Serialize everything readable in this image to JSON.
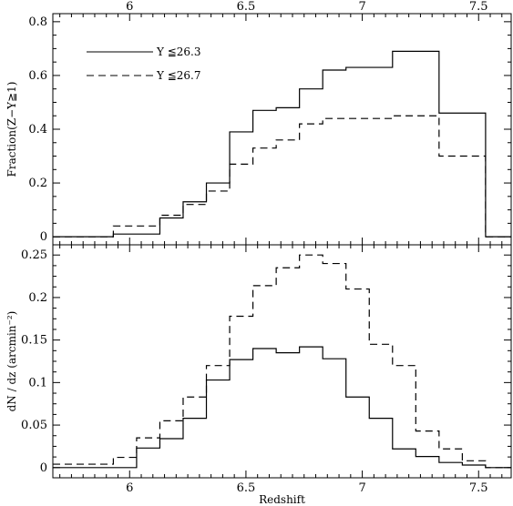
{
  "figure": {
    "xlabel": "Redshift",
    "xlim": [
      5.67,
      7.64
    ],
    "top_xticks": [
      "6",
      "6.5",
      "7",
      "7.5"
    ],
    "bottom_xticks": [
      "6",
      "6.5",
      "7",
      "7.5"
    ],
    "line_color": "#000000",
    "background": "#ffffff"
  },
  "chart_data": [
    {
      "type": "line",
      "subtype": "step-histogram",
      "ylabel": "Fraction(Z−Y≧1)",
      "ylim": [
        -0.03,
        0.83
      ],
      "yticks": [
        "0",
        "0.2",
        "0.4",
        "0.6",
        "0.8"
      ],
      "legend": {
        "placement": "top-left"
      },
      "x_edges": [
        5.67,
        5.93,
        6.13,
        6.23,
        6.33,
        6.43,
        6.53,
        6.63,
        6.73,
        6.83,
        6.93,
        7.03,
        7.13,
        7.23,
        7.33,
        7.53,
        7.64
      ],
      "series": [
        {
          "name": "Y ≦26.3",
          "dash": "solid",
          "values": [
            0.0,
            0.01,
            0.07,
            0.13,
            0.2,
            0.39,
            0.47,
            0.48,
            0.55,
            0.62,
            0.63,
            0.63,
            0.69,
            0.69,
            0.46,
            0.0
          ]
        },
        {
          "name": "Y ≦26.7",
          "dash": "dashed",
          "values": [
            0.0,
            0.04,
            0.08,
            0.12,
            0.17,
            0.27,
            0.33,
            0.36,
            0.42,
            0.44,
            0.44,
            0.44,
            0.45,
            0.45,
            0.3,
            0.0
          ]
        }
      ]
    },
    {
      "type": "line",
      "subtype": "step-histogram",
      "ylabel": "dN / dz (arcmin⁻²)",
      "ylim": [
        -0.012,
        0.262
      ],
      "yticks": [
        "0",
        "0.05",
        "0.1",
        "0.15",
        "0.2",
        "0.25"
      ],
      "x_edges": [
        5.67,
        5.93,
        6.03,
        6.13,
        6.23,
        6.33,
        6.43,
        6.53,
        6.63,
        6.73,
        6.83,
        6.93,
        7.03,
        7.13,
        7.23,
        7.33,
        7.43,
        7.53,
        7.64
      ],
      "series": [
        {
          "name": "Y ≦26.3",
          "dash": "solid",
          "values": [
            0.0,
            0.0,
            0.023,
            0.034,
            0.058,
            0.103,
            0.127,
            0.14,
            0.135,
            0.142,
            0.128,
            0.083,
            0.058,
            0.022,
            0.013,
            0.006,
            0.003,
            0.0
          ]
        },
        {
          "name": "Y ≦26.7",
          "dash": "dashed",
          "values": [
            0.004,
            0.012,
            0.035,
            0.055,
            0.083,
            0.12,
            0.178,
            0.214,
            0.235,
            0.25,
            0.24,
            0.21,
            0.145,
            0.12,
            0.043,
            0.022,
            0.008,
            0.0
          ]
        }
      ]
    }
  ]
}
